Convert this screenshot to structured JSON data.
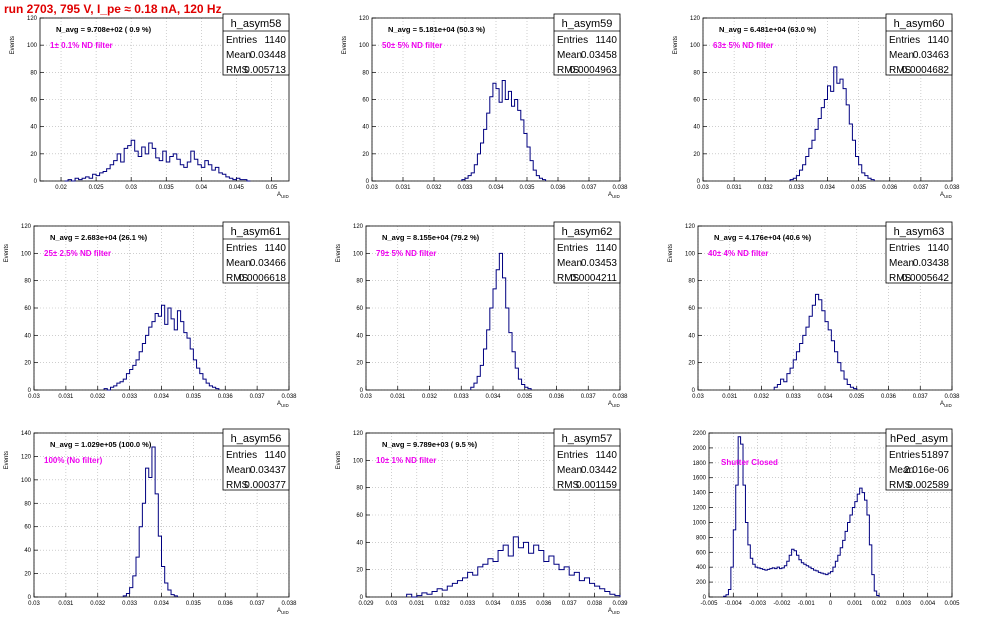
{
  "page_title": "run 2703,   795 V, I_pe ≈ 0.18 nA, 120 Hz",
  "stats_labels": {
    "entries": "Entries",
    "mean": "Mean",
    "rms": "RMS"
  },
  "colors": {
    "title": "#e00000",
    "histogram": "#000080",
    "annotation": "#ee00ee",
    "grid": "#b0b0b0"
  },
  "chart_data": [
    {
      "type": "histogram",
      "name": "h_asym58",
      "n_avg_label": "N_avg = 9.708e+02 ( 0.9 %)",
      "filter_label": "1± 0.1% ND filter",
      "stats": {
        "entries": "1140",
        "mean": "0.03448",
        "rms": "0.005713"
      },
      "ylabel": "Events",
      "xlabel": "A_UID",
      "grid": true,
      "xlim": [
        0.017,
        0.0525
      ],
      "ylim": [
        0,
        120
      ],
      "xticks": [
        "0.02",
        "0.025",
        "0.03",
        "0.035",
        "0.04",
        "0.045",
        "0.05"
      ],
      "xtick_values": [
        0.02,
        0.025,
        0.03,
        0.035,
        0.04,
        0.045,
        0.05
      ],
      "yticks": [
        0,
        20,
        40,
        60,
        80,
        100,
        120
      ],
      "bin_start": 0.0205,
      "bin_width": 0.0005,
      "values": [
        0,
        1,
        0,
        2,
        1,
        2,
        3,
        2,
        5,
        4,
        6,
        7,
        9,
        12,
        15,
        20,
        14,
        24,
        26,
        30,
        22,
        18,
        25,
        20,
        28,
        24,
        17,
        15,
        22,
        14,
        18,
        20,
        16,
        12,
        10,
        14,
        22,
        16,
        12,
        10,
        15,
        12,
        8,
        10,
        6,
        5,
        3,
        2,
        1,
        2,
        1,
        1,
        0
      ]
    },
    {
      "type": "histogram",
      "name": "h_asym59",
      "n_avg_label": "N_avg = 5.181e+04 (50.3 %)",
      "filter_label": "50± 5% ND filter",
      "stats": {
        "entries": "1140",
        "mean": "0.03458",
        "rms": "0.0004963"
      },
      "ylabel": "Events",
      "xlabel": "A_UID",
      "grid": true,
      "xlim": [
        0.03,
        0.038
      ],
      "ylim": [
        0,
        120
      ],
      "xticks": [
        "0.03",
        "0.031",
        "0.032",
        "0.033",
        "0.034",
        "0.035",
        "0.036",
        "0.037",
        "0.038"
      ],
      "xtick_values": [
        0.03,
        0.031,
        0.032,
        0.033,
        0.034,
        0.035,
        0.036,
        0.037,
        0.038
      ],
      "yticks": [
        0,
        20,
        40,
        60,
        80,
        100,
        120
      ],
      "bin_start": 0.0329,
      "bin_width": 0.0001,
      "values": [
        1,
        2,
        4,
        6,
        12,
        20,
        28,
        38,
        50,
        62,
        72,
        68,
        58,
        74,
        60,
        66,
        55,
        60,
        52,
        45,
        35,
        25,
        15,
        8,
        4,
        2,
        1
      ]
    },
    {
      "type": "histogram",
      "name": "h_asym60",
      "n_avg_label": "N_avg = 6.481e+04 (63.0 %)",
      "filter_label": "63± 5% ND filter",
      "stats": {
        "entries": "1140",
        "mean": "0.03463",
        "rms": "0.0004682"
      },
      "ylabel": "Events",
      "xlabel": "A_UID",
      "grid": true,
      "xlim": [
        0.03,
        0.038
      ],
      "ylim": [
        0,
        120
      ],
      "xticks": [
        "0.03",
        "0.031",
        "0.032",
        "0.033",
        "0.034",
        "0.035",
        "0.036",
        "0.037",
        "0.038"
      ],
      "xtick_values": [
        0.03,
        0.031,
        0.032,
        0.033,
        0.034,
        0.035,
        0.036,
        0.037,
        0.038
      ],
      "yticks": [
        0,
        20,
        40,
        60,
        80,
        100,
        120
      ],
      "bin_start": 0.0328,
      "bin_width": 0.0001,
      "values": [
        1,
        2,
        4,
        8,
        12,
        18,
        24,
        30,
        38,
        46,
        54,
        60,
        70,
        66,
        84,
        72,
        75,
        68,
        56,
        42,
        30,
        18,
        12,
        6,
        4,
        2,
        1
      ]
    },
    {
      "type": "histogram",
      "name": "h_asym61",
      "n_avg_label": "N_avg = 2.683e+04 (26.1 %)",
      "filter_label": "25± 2.5% ND filter",
      "stats": {
        "entries": "1140",
        "mean": "0.03466",
        "rms": "0.0006618"
      },
      "ylabel": "Events",
      "xlabel": "A_UID",
      "grid": true,
      "xlim": [
        0.03,
        0.038
      ],
      "ylim": [
        0,
        120
      ],
      "xticks": [
        "0.03",
        "0.031",
        "0.032",
        "0.033",
        "0.034",
        "0.035",
        "0.036",
        "0.037",
        "0.038"
      ],
      "xtick_values": [
        0.03,
        0.031,
        0.032,
        0.033,
        0.034,
        0.035,
        0.036,
        0.037,
        0.038
      ],
      "yticks": [
        0,
        20,
        40,
        60,
        80,
        100,
        120
      ],
      "bin_start": 0.0322,
      "bin_width": 0.0001,
      "values": [
        1,
        0,
        2,
        3,
        5,
        6,
        8,
        12,
        15,
        18,
        22,
        28,
        34,
        40,
        46,
        50,
        56,
        54,
        62,
        48,
        60,
        52,
        44,
        58,
        50,
        42,
        38,
        30,
        22,
        16,
        12,
        8,
        5,
        3,
        2,
        1
      ]
    },
    {
      "type": "histogram",
      "name": "h_asym62",
      "n_avg_label": "N_avg = 8.155e+04 (79.2 %)",
      "filter_label": "79± 5% ND filter",
      "stats": {
        "entries": "1140",
        "mean": "0.03453",
        "rms": "0.0004211"
      },
      "ylabel": "Events",
      "xlabel": "A_UID",
      "grid": true,
      "xlim": [
        0.03,
        0.038
      ],
      "ylim": [
        0,
        120
      ],
      "xticks": [
        "0.03",
        "0.031",
        "0.032",
        "0.033",
        "0.034",
        "0.035",
        "0.036",
        "0.037",
        "0.038"
      ],
      "xtick_values": [
        0.03,
        0.031,
        0.032,
        0.033,
        0.034,
        0.035,
        0.036,
        0.037,
        0.038
      ],
      "yticks": [
        0,
        20,
        40,
        60,
        80,
        100,
        120
      ],
      "bin_start": 0.0333,
      "bin_width": 0.0001,
      "values": [
        2,
        5,
        10,
        18,
        30,
        44,
        60,
        74,
        88,
        100,
        82,
        60,
        42,
        28,
        16,
        8,
        4,
        2,
        1
      ]
    },
    {
      "type": "histogram",
      "name": "h_asym63",
      "n_avg_label": "N_avg = 4.176e+04 (40.6 %)",
      "filter_label": "40± 4% ND filter",
      "stats": {
        "entries": "1140",
        "mean": "0.03438",
        "rms": "0.0005642"
      },
      "ylabel": "Events",
      "xlabel": "A_UID",
      "grid": true,
      "xlim": [
        0.03,
        0.038
      ],
      "ylim": [
        0,
        120
      ],
      "xticks": [
        "0.03",
        "0.031",
        "0.032",
        "0.033",
        "0.034",
        "0.035",
        "0.036",
        "0.037",
        "0.038"
      ],
      "xtick_values": [
        0.03,
        0.031,
        0.032,
        0.033,
        0.034,
        0.035,
        0.036,
        0.037,
        0.038
      ],
      "yticks": [
        0,
        20,
        40,
        60,
        80,
        100,
        120
      ],
      "bin_start": 0.0324,
      "bin_width": 0.0001,
      "values": [
        2,
        4,
        8,
        6,
        12,
        16,
        22,
        28,
        34,
        40,
        46,
        54,
        62,
        70,
        66,
        58,
        50,
        44,
        36,
        28,
        20,
        14,
        8,
        4,
        2,
        1
      ]
    },
    {
      "type": "histogram",
      "name": "h_asym56",
      "n_avg_label": "N_avg = 1.029e+05 (100.0 %)",
      "filter_label": "100% (No filter)",
      "stats": {
        "entries": "1140",
        "mean": "0.03437",
        "rms": "0.000377"
      },
      "ylabel": "Events",
      "xlabel": "A_UID",
      "grid": true,
      "xlim": [
        0.03,
        0.038
      ],
      "ylim": [
        0,
        140
      ],
      "xticks": [
        "0.03",
        "0.031",
        "0.032",
        "0.033",
        "0.034",
        "0.035",
        "0.036",
        "0.037",
        "0.038"
      ],
      "xtick_values": [
        0.03,
        0.031,
        0.032,
        0.033,
        0.034,
        0.035,
        0.036,
        0.037,
        0.038
      ],
      "yticks": [
        0,
        20,
        40,
        60,
        80,
        100,
        120,
        140
      ],
      "bin_start": 0.0328,
      "bin_width": 0.0001,
      "values": [
        1,
        3,
        8,
        18,
        34,
        60,
        80,
        110,
        102,
        128,
        88,
        52,
        26,
        12,
        6,
        2,
        1
      ]
    },
    {
      "type": "histogram",
      "name": "h_asym57",
      "n_avg_label": "N_avg = 9.789e+03 ( 9.5 %)",
      "filter_label": "10± 1% ND filter",
      "stats": {
        "entries": "1140",
        "mean": "0.03442",
        "rms": "0.001159"
      },
      "ylabel": "Events",
      "xlabel": "A_UID",
      "grid": true,
      "xlim": [
        0.029,
        0.039
      ],
      "ylim": [
        0,
        120
      ],
      "xticks": [
        "0.029",
        "0.03",
        "0.031",
        "0.032",
        "0.033",
        "0.034",
        "0.035",
        "0.036",
        "0.037",
        "0.038",
        "0.039"
      ],
      "xtick_values": [
        0.029,
        0.03,
        0.031,
        0.032,
        0.033,
        0.034,
        0.035,
        0.036,
        0.037,
        0.038,
        0.039
      ],
      "yticks": [
        0,
        20,
        40,
        60,
        80,
        100,
        120
      ],
      "bin_start": 0.0306,
      "bin_width": 0.0002,
      "values": [
        2,
        0,
        1,
        3,
        2,
        4,
        6,
        5,
        8,
        10,
        12,
        14,
        18,
        16,
        22,
        24,
        28,
        26,
        34,
        38,
        30,
        44,
        36,
        40,
        32,
        38,
        34,
        26,
        30,
        24,
        20,
        22,
        16,
        18,
        12,
        14,
        10,
        8,
        6,
        4,
        2,
        1
      ]
    },
    {
      "type": "histogram",
      "name": "hPed_asym",
      "n_avg_label": "",
      "filter_label": "Shutter Closed",
      "stats": {
        "entries": "51897",
        "mean": "2.016e-06",
        "rms": "0.002589"
      },
      "ylabel": "",
      "xlabel": "",
      "grid": true,
      "xlim": [
        -0.005,
        0.005
      ],
      "ylim": [
        0,
        2200
      ],
      "xticks": [
        "-0.005",
        "-0.004",
        "-0.003",
        "-0.002",
        "-0.001",
        "0",
        "0.001",
        "0.002",
        "0.003",
        "0.004",
        "0.005"
      ],
      "xtick_values": [
        -0.005,
        -0.004,
        -0.003,
        -0.002,
        -0.001,
        0,
        0.001,
        0.002,
        0.003,
        0.004,
        0.005
      ],
      "yticks": [
        0,
        200,
        400,
        600,
        800,
        1000,
        1200,
        1400,
        1600,
        1800,
        2000,
        2200
      ],
      "bin_start": -0.0044,
      "bin_width": 0.0001,
      "values": [
        10,
        30,
        100,
        400,
        900,
        1500,
        2150,
        2050,
        1500,
        1000,
        700,
        520,
        440,
        400,
        390,
        380,
        370,
        360,
        370,
        380,
        390,
        380,
        400,
        380,
        390,
        420,
        480,
        560,
        640,
        620,
        560,
        500,
        460,
        440,
        420,
        400,
        380,
        360,
        350,
        330,
        320,
        310,
        300,
        320,
        340,
        400,
        480,
        560,
        660,
        760,
        880,
        1000,
        1100,
        1200,
        1280,
        1380,
        1460,
        1400,
        1300,
        1100,
        700,
        300,
        80,
        20
      ]
    }
  ]
}
